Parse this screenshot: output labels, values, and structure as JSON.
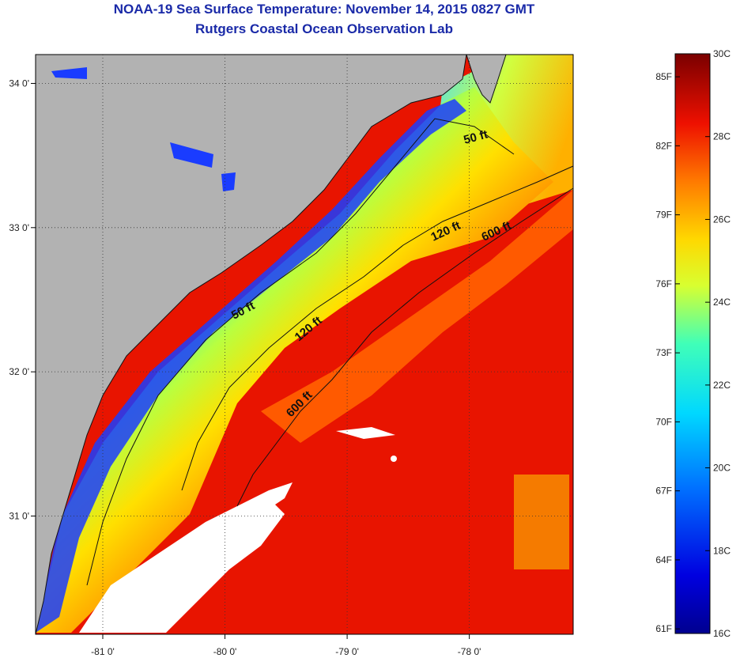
{
  "title": "NOAA-19 Sea Surface Temperature:  November 14, 2015 0827 GMT",
  "subtitle": "Rutgers Coastal Ocean Observation Lab",
  "map": {
    "lat_ticks": [
      {
        "value": 34,
        "label": "34 0'"
      },
      {
        "value": 33,
        "label": "33 0'"
      },
      {
        "value": 32,
        "label": "32 0'"
      },
      {
        "value": 31,
        "label": "31 0'"
      }
    ],
    "lon_ticks": [
      {
        "value": -81,
        "label": "-81 0'"
      },
      {
        "value": -80,
        "label": "-80 0'"
      },
      {
        "value": -79,
        "label": "-79 0'"
      },
      {
        "value": -78,
        "label": "-78 0'"
      }
    ],
    "lon_range": [
      -81.55,
      -77.15
    ],
    "lat_range": [
      30.18,
      34.2
    ],
    "depth_labels": [
      {
        "text": "50 ft"
      },
      {
        "text": "120 ft"
      },
      {
        "text": "600 ft"
      },
      {
        "text": "50 ft"
      },
      {
        "text": "120 ft"
      },
      {
        "text": "600 ft"
      }
    ],
    "colors": {
      "land": "#b2b2b2",
      "cloud": "#ffffff"
    }
  },
  "colorbar": {
    "fahrenheit": [
      "85F",
      "82F",
      "79F",
      "76F",
      "73F",
      "70F",
      "67F",
      "64F",
      "61F"
    ],
    "celsius": [
      "30C",
      "28C",
      "26C",
      "24C",
      "22C",
      "20C",
      "18C",
      "16C"
    ],
    "range_c": [
      16,
      30
    ]
  }
}
